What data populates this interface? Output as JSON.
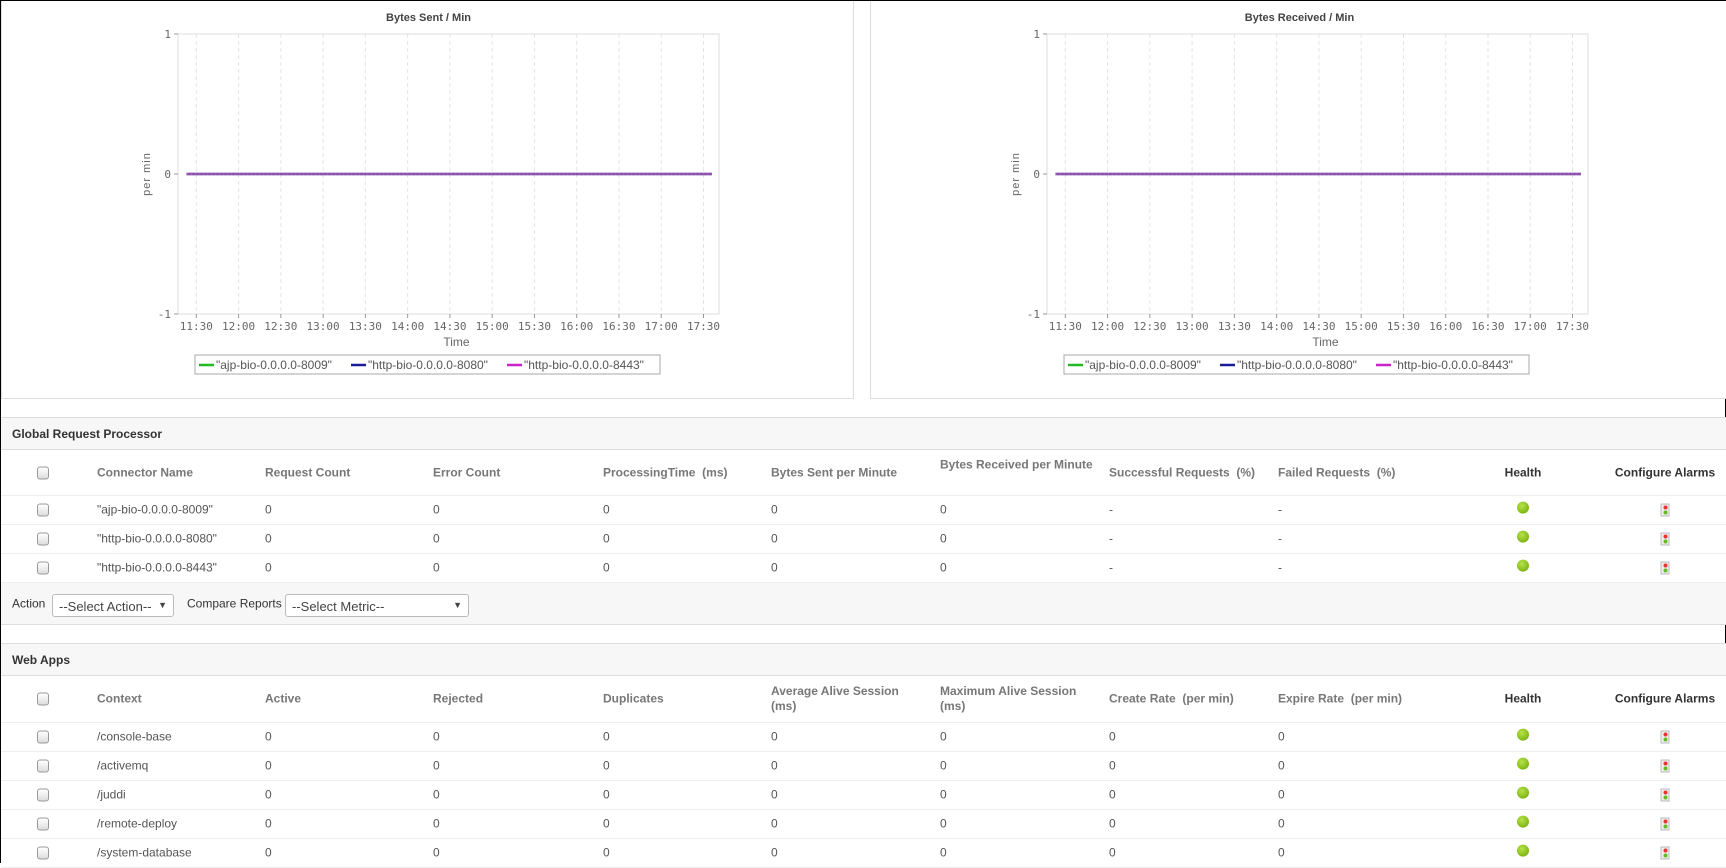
{
  "charts": [
    {
      "title": "Bytes Sent / Min",
      "ylabel": "per min",
      "xlabel": "Time"
    },
    {
      "title": "Bytes Received / Min",
      "ylabel": "per min",
      "xlabel": "Time"
    }
  ],
  "chart_data": [
    {
      "type": "line",
      "title": "Bytes Sent / Min",
      "xlabel": "Time",
      "ylabel": "per min",
      "ylim": [
        -1,
        1
      ],
      "yticks": [
        "1",
        "0",
        "-1"
      ],
      "xlim": [
        "11:17",
        "17:41"
      ],
      "xticks": [
        "11:30",
        "12:00",
        "12:30",
        "13:00",
        "13:30",
        "14:00",
        "14:30",
        "15:00",
        "15:30",
        "16:00",
        "16:30",
        "17:00",
        "17:30"
      ],
      "grid": "vertical dashed",
      "legend": "bottom",
      "x": [
        "11:23",
        "11:30",
        "12:00",
        "12:30",
        "13:00",
        "13:30",
        "14:00",
        "14:30",
        "15:00",
        "15:30",
        "16:00",
        "16:30",
        "17:00",
        "17:30",
        "17:36"
      ],
      "series": [
        {
          "name": "\"ajp-bio-0.0.0.0-8009\"",
          "color": "#22bb22",
          "values": [
            0,
            0,
            0,
            0,
            0,
            0,
            0,
            0,
            0,
            0,
            0,
            0,
            0,
            0,
            0
          ]
        },
        {
          "name": "\"http-bio-0.0.0.0-8080\"",
          "color": "#1a1a99",
          "values": [
            0,
            0,
            0,
            0,
            0,
            0,
            0,
            0,
            0,
            0,
            0,
            0,
            0,
            0,
            0
          ]
        },
        {
          "name": "\"http-bio-0.0.0.0-8443\"",
          "color": "#cc22cc",
          "values": [
            0,
            0,
            0,
            0,
            0,
            0,
            0,
            0,
            0,
            0,
            0,
            0,
            0,
            0,
            0
          ]
        }
      ]
    },
    {
      "type": "line",
      "title": "Bytes Received / Min",
      "xlabel": "Time",
      "ylabel": "per min",
      "ylim": [
        -1,
        1
      ],
      "yticks": [
        "1",
        "0",
        "-1"
      ],
      "xlim": [
        "11:17",
        "17:41"
      ],
      "xticks": [
        "11:30",
        "12:00",
        "12:30",
        "13:00",
        "13:30",
        "14:00",
        "14:30",
        "15:00",
        "15:30",
        "16:00",
        "16:30",
        "17:00",
        "17:30"
      ],
      "grid": "vertical dashed",
      "legend": "bottom",
      "x": [
        "11:23",
        "11:30",
        "12:00",
        "12:30",
        "13:00",
        "13:30",
        "14:00",
        "14:30",
        "15:00",
        "15:30",
        "16:00",
        "16:30",
        "17:00",
        "17:30",
        "17:36"
      ],
      "series": [
        {
          "name": "\"ajp-bio-0.0.0.0-8009\"",
          "color": "#22bb22",
          "values": [
            0,
            0,
            0,
            0,
            0,
            0,
            0,
            0,
            0,
            0,
            0,
            0,
            0,
            0,
            0
          ]
        },
        {
          "name": "\"http-bio-0.0.0.0-8080\"",
          "color": "#1a1a99",
          "values": [
            0,
            0,
            0,
            0,
            0,
            0,
            0,
            0,
            0,
            0,
            0,
            0,
            0,
            0,
            0
          ]
        },
        {
          "name": "\"http-bio-0.0.0.0-8443\"",
          "color": "#cc22cc",
          "values": [
            0,
            0,
            0,
            0,
            0,
            0,
            0,
            0,
            0,
            0,
            0,
            0,
            0,
            0,
            0
          ]
        }
      ]
    }
  ],
  "grp": {
    "title": "Global Request Processor",
    "columns": [
      "Connector Name",
      "Request Count",
      "Error Count",
      "ProcessingTime  (ms)",
      "Bytes Sent per Minute",
      "Bytes Received per Minute",
      "Successful Requests  (%)",
      "Failed Requests  (%)",
      "Health",
      "Configure Alarms"
    ],
    "rows": [
      [
        "\"ajp-bio-0.0.0.0-8009\"",
        "0",
        "0",
        "0",
        "0",
        "0",
        "-",
        "-"
      ],
      [
        "\"http-bio-0.0.0.0-8080\"",
        "0",
        "0",
        "0",
        "0",
        "0",
        "-",
        "-"
      ],
      [
        "\"http-bio-0.0.0.0-8443\"",
        "0",
        "0",
        "0",
        "0",
        "0",
        "-",
        "-"
      ]
    ],
    "health": [
      "green",
      "green",
      "green"
    ],
    "action_label": "Action",
    "action_select": "--Select Action--",
    "compare_label": "Compare Reports",
    "metric_select": "--Select Metric--"
  },
  "webapps": {
    "title": "Web Apps",
    "columns": [
      "Context",
      "Active",
      "Rejected",
      "Duplicates",
      "Average Alive Session\n(ms)",
      "Maximum Alive Session\n(ms)",
      "Create Rate  (per min)",
      "Expire Rate  (per min)",
      "Health",
      "Configure Alarms"
    ],
    "rows": [
      [
        "/console-base",
        "0",
        "0",
        "0",
        "0",
        "0",
        "0",
        "0"
      ],
      [
        "/activemq",
        "0",
        "0",
        "0",
        "0",
        "0",
        "0",
        "0"
      ],
      [
        "/juddi",
        "0",
        "0",
        "0",
        "0",
        "0",
        "0",
        "0"
      ],
      [
        "/remote-deploy",
        "0",
        "0",
        "0",
        "0",
        "0",
        "0",
        "0"
      ],
      [
        "/system-database",
        "0",
        "0",
        "0",
        "0",
        "0",
        "0",
        "0"
      ]
    ],
    "health": [
      "green",
      "green",
      "green",
      "green",
      "green"
    ]
  }
}
